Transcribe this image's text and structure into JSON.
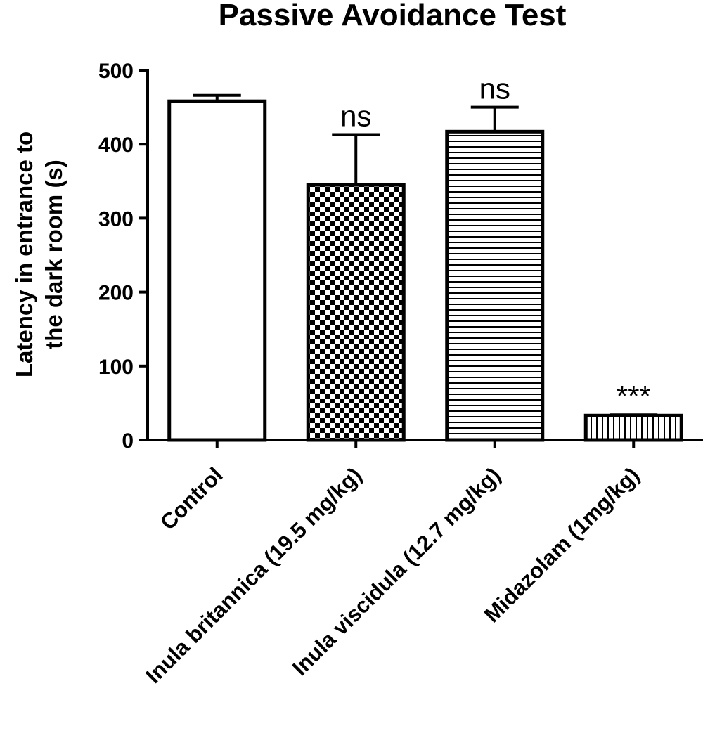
{
  "chart_data": {
    "type": "bar",
    "title": "Passive Avoidance Test",
    "ylabel_lines": [
      "Latency in entrance to",
      "the dark room  (s)"
    ],
    "xlabel": "",
    "ylim": [
      0,
      500
    ],
    "yticks": [
      0,
      100,
      200,
      300,
      400,
      500
    ],
    "grid": false,
    "categories": [
      "Control",
      "Inula britannica (19.5 mg/kg)",
      "Inula viscidula (12.7 mg/kg)",
      "Midazolam (1mg/kg)"
    ],
    "values": [
      458,
      345,
      417,
      33
    ],
    "errors": [
      8,
      68,
      33,
      1
    ],
    "annotations": [
      "",
      "ns",
      "ns",
      "***"
    ],
    "fill_patterns": [
      "solid-white",
      "checkerboard",
      "horizontal-lines",
      "vertical-lines"
    ]
  }
}
